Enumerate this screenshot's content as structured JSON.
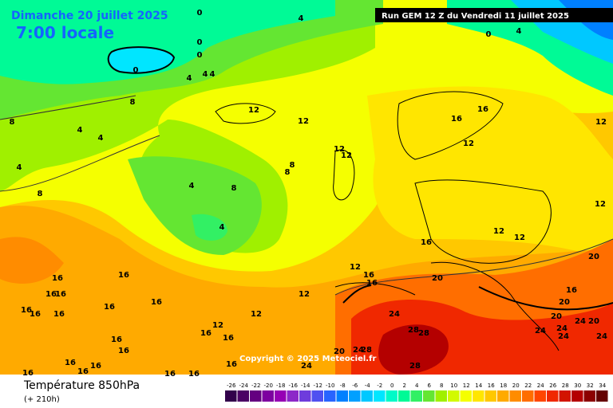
{
  "header": {
    "date": "Dimanche 20 juillet 2025",
    "time": "7:00 locale",
    "run": "Run GEM 12 Z du Vendredi 11 juillet 2025"
  },
  "footer": {
    "title": "Température 850hPa",
    "lead": "(+ 210h)",
    "copyright": "Copyright © 2025 Meteociel.fr"
  },
  "scale": {
    "values": [
      -26,
      -24,
      -22,
      -20,
      -18,
      -16,
      -14,
      -12,
      -10,
      -8,
      -6,
      -4,
      -2,
      0,
      2,
      4,
      6,
      8,
      10,
      12,
      14,
      16,
      18,
      20,
      22,
      24,
      26,
      28,
      30,
      32,
      34
    ],
    "colors": [
      "#32004b",
      "#4b0064",
      "#640080",
      "#7d00a0",
      "#9600b4",
      "#8c28c8",
      "#6e3cdc",
      "#5050f0",
      "#2864ff",
      "#0080ff",
      "#00a0ff",
      "#00c8ff",
      "#00e6ff",
      "#00fac8",
      "#00fa96",
      "#32f064",
      "#64e632",
      "#a0f000",
      "#d2fa00",
      "#f5ff00",
      "#ffe600",
      "#ffc800",
      "#ffaa00",
      "#ff8c00",
      "#ff6e00",
      "#ff4600",
      "#f02800",
      "#d21400",
      "#b40000",
      "#8c0000",
      "#640000"
    ]
  },
  "map": {
    "labels": [
      4,
      0,
      0,
      0,
      0,
      4,
      4,
      4,
      8,
      8,
      4,
      4,
      4,
      8,
      12,
      12,
      16,
      16,
      12,
      12,
      12,
      12,
      8,
      8,
      4,
      8,
      4,
      12,
      12,
      12,
      16,
      12,
      16,
      16,
      20,
      20,
      12,
      16,
      16,
      16,
      16,
      16,
      16,
      16,
      16,
      16,
      24,
      16,
      20,
      20,
      24,
      20,
      12,
      16,
      16,
      12,
      16,
      16,
      28,
      28,
      24,
      24,
      24,
      24,
      20,
      24,
      28,
      24,
      28,
      16,
      16,
      16,
      16,
      16,
      16,
      16,
      0,
      4
    ]
  }
}
